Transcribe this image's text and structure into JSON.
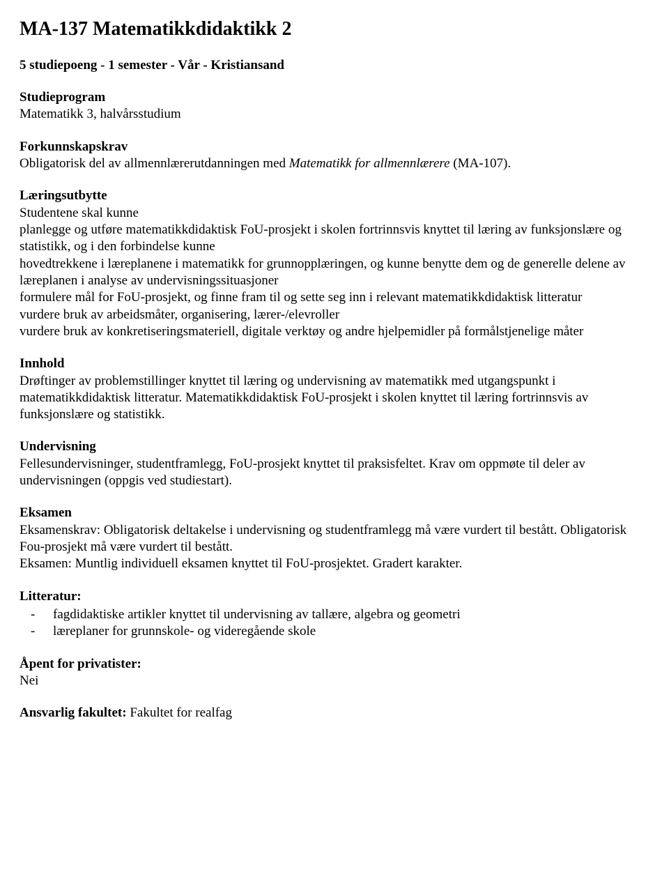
{
  "title": "MA-137 Matematikkdidaktikk 2",
  "subtitle": "5 studiepoeng - 1 semester - Vår - Kristiansand",
  "studieprogram": {
    "heading": "Studieprogram",
    "text": "Matematikk 3, halvårsstudium"
  },
  "forkunnskapskrav": {
    "heading": "Forkunnskapskrav",
    "text_pre": "Obligatorisk del av allmennlærerutdanningen med ",
    "text_italic": "Matematikk for allmennlærere",
    "text_post": " (MA-107)."
  },
  "laeringsutbytte": {
    "heading": "Læringsutbytte",
    "intro": "Studentene skal kunne",
    "items": [
      "planlegge og utføre matematikkdidaktisk FoU-prosjekt i skolen fortrinnsvis knyttet til læring av funksjonslære og statistikk, og i den forbindelse kunne",
      "hovedtrekkene i læreplanene i matematikk for grunnopplæringen, og kunne benytte dem og de generelle delene av læreplanen i analyse av undervisningssituasjoner",
      "formulere mål for FoU-prosjekt, og finne fram til og sette seg inn i  relevant matematikkdidaktisk litteratur",
      "vurdere bruk av arbeidsmåter, organisering, lærer-/elevroller",
      "vurdere bruk av konkretiseringsmateriell, digitale verktøy og andre hjelpemidler på formålstjenelige måter"
    ]
  },
  "innhold": {
    "heading": "Innhold",
    "text": "Drøftinger av problemstillinger knyttet til læring og undervisning av matematikk med utgangspunkt i matematikkdidaktisk litteratur. Matematikkdidaktisk FoU-prosjekt i skolen knyttet til læring fortrinnsvis av funksjonslære og statistikk."
  },
  "undervisning": {
    "heading": "Undervisning",
    "text": "Fellesundervisninger, studentframlegg, FoU-prosjekt knyttet til praksisfeltet. Krav om oppmøte til deler av undervisningen (oppgis ved studiestart)."
  },
  "eksamen": {
    "heading": "Eksamen",
    "text1": "Eksamenskrav: Obligatorisk deltakelse i undervisning og studentframlegg må være vurdert til bestått. Obligatorisk Fou-prosjekt må være vurdert til bestått.",
    "text2": "Eksamen: Muntlig individuell eksamen knyttet til FoU-prosjektet. Gradert karakter."
  },
  "litteratur": {
    "heading": "Litteratur:",
    "items": [
      "fagdidaktiske artikler knyttet til undervisning av tallære, algebra og geometri",
      "læreplaner for grunnskole- og videregående skole"
    ]
  },
  "privatister": {
    "heading": "Åpent for privatister:",
    "value": "Nei"
  },
  "ansvarlig": {
    "heading": "Ansvarlig fakultet: ",
    "value": "Fakultet for realfag"
  }
}
